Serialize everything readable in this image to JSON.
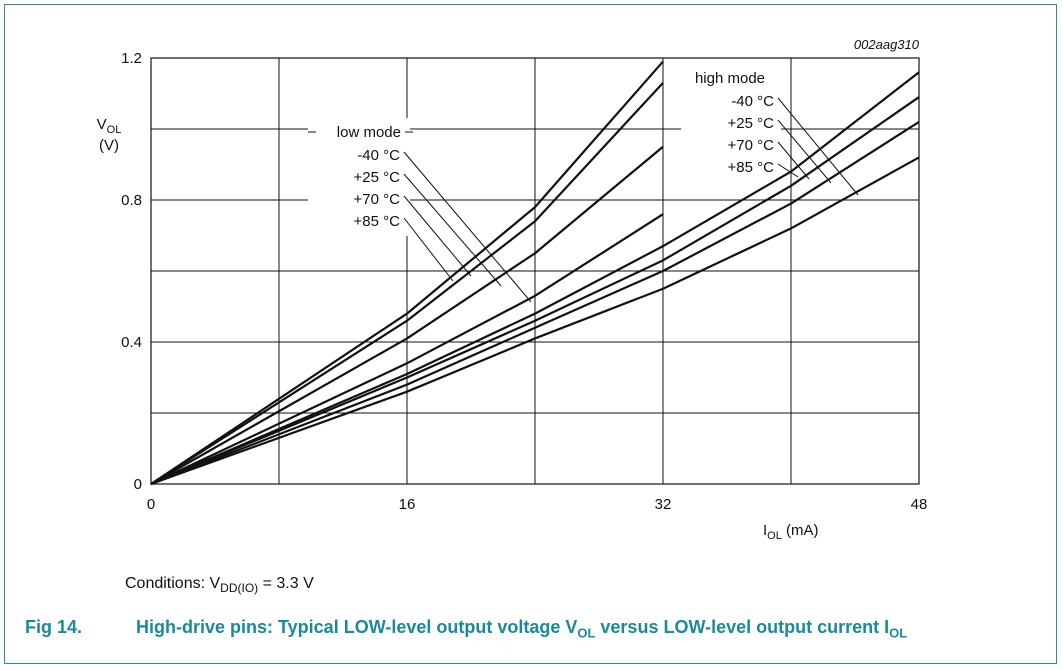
{
  "chart_data": {
    "type": "line",
    "id_label": "002aag310",
    "ylabel": {
      "main": "V",
      "sub": "OL",
      "unit": "(V)"
    },
    "xlabel": {
      "main": "I",
      "sub": "OL",
      "unit": "(mA)"
    },
    "xlim": [
      0,
      48
    ],
    "ylim": [
      0,
      1.2
    ],
    "x_ticks": [
      "0",
      "16",
      "32",
      "48"
    ],
    "y_ticks": [
      "0",
      "0.4",
      "0.8",
      "1.2"
    ],
    "grid": true,
    "groups": [
      {
        "name": "low mode",
        "series": [
          {
            "name": "-40 °C",
            "x": [
              0,
              16,
              24,
              32
            ],
            "y": [
              0,
              0.48,
              0.78,
              1.19
            ]
          },
          {
            "name": "+25 °C",
            "x": [
              0,
              16,
              24,
              32
            ],
            "y": [
              0,
              0.46,
              0.74,
              1.13
            ]
          },
          {
            "name": "+70 °C",
            "x": [
              0,
              16,
              24,
              32
            ],
            "y": [
              0,
              0.41,
              0.65,
              0.95
            ]
          },
          {
            "name": "+85 °C",
            "x": [
              0,
              16,
              24,
              32
            ],
            "y": [
              0,
              0.34,
              0.53,
              0.76
            ]
          }
        ]
      },
      {
        "name": "high mode",
        "series": [
          {
            "name": "-40 °C",
            "x": [
              0,
              16,
              24,
              32,
              40,
              48
            ],
            "y": [
              0,
              0.31,
              0.48,
              0.67,
              0.88,
              1.16
            ]
          },
          {
            "name": "+25 °C",
            "x": [
              0,
              16,
              24,
              32,
              40,
              48
            ],
            "y": [
              0,
              0.3,
              0.46,
              0.63,
              0.84,
              1.09
            ]
          },
          {
            "name": "+70 °C",
            "x": [
              0,
              16,
              24,
              32,
              40,
              48
            ],
            "y": [
              0,
              0.28,
              0.44,
              0.6,
              0.79,
              1.02
            ]
          },
          {
            "name": "+85 °C",
            "x": [
              0,
              16,
              24,
              32,
              40,
              48
            ],
            "y": [
              0,
              0.26,
              0.41,
              0.55,
              0.72,
              0.92
            ]
          }
        ]
      }
    ]
  },
  "conditions": {
    "prefix": "Conditions: V",
    "sub": "DD(IO)",
    "suffix": " = 3.3 V"
  },
  "caption": {
    "figure": "Fig 14.",
    "text_a": "High-drive pins: Typical LOW-level output voltage V",
    "sub_a": "OL",
    "text_b": " versus LOW-level output current I",
    "sub_b": "OL"
  }
}
